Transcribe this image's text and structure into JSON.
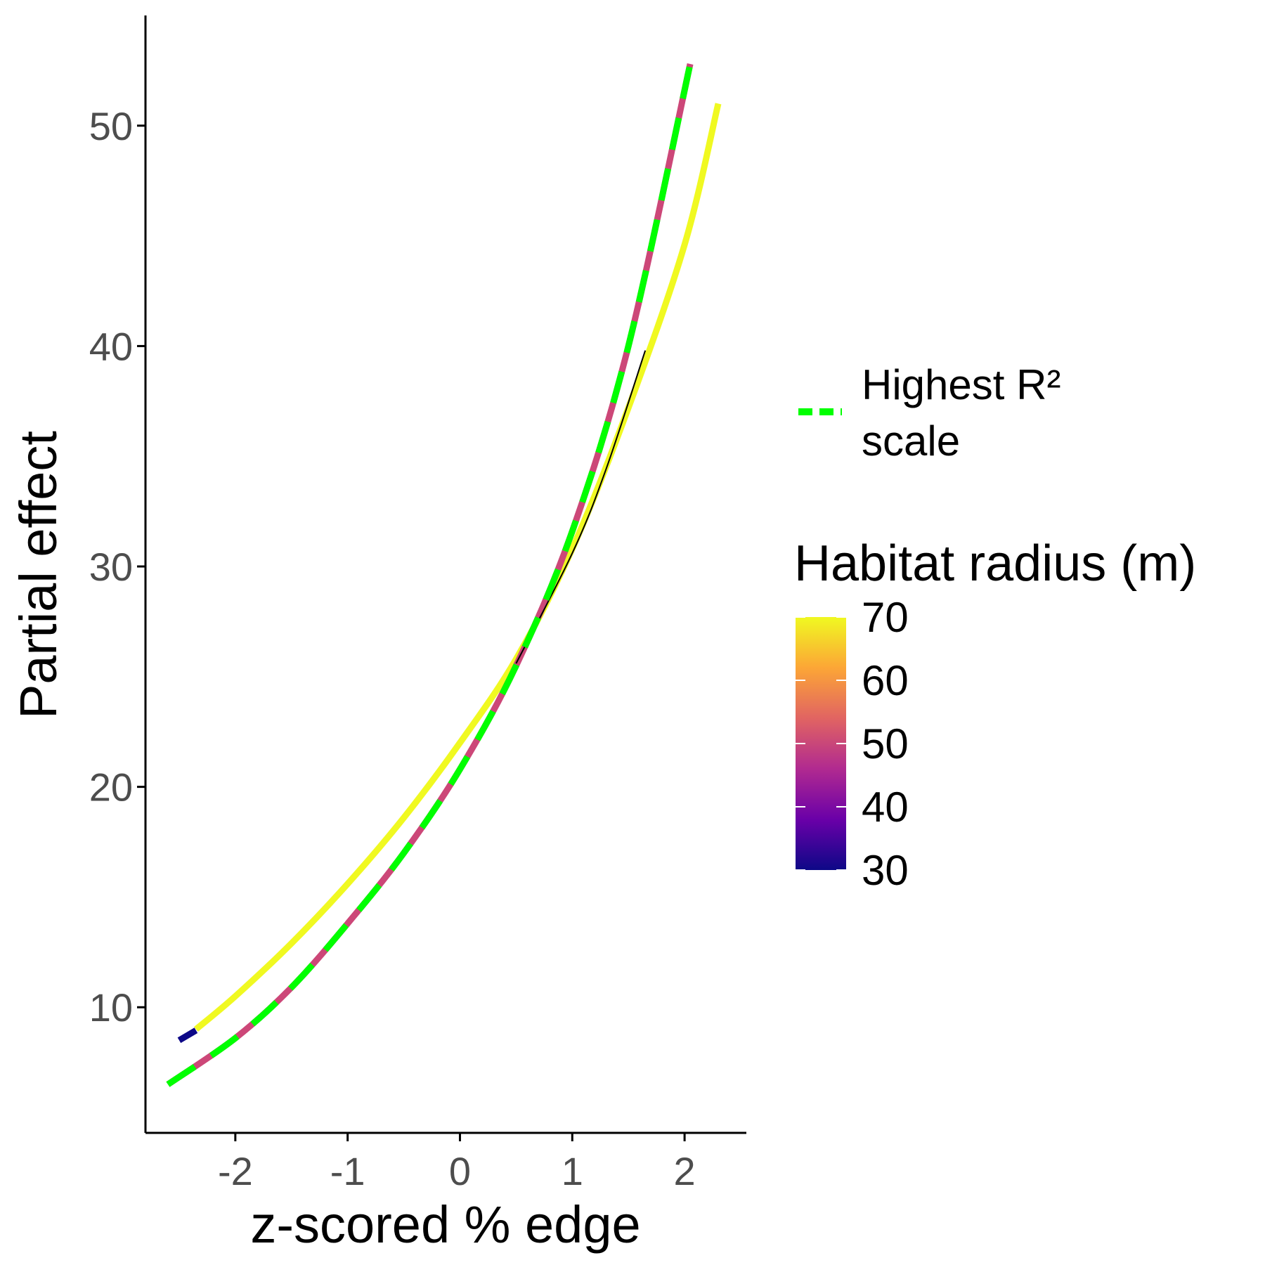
{
  "chart_data": {
    "type": "line",
    "title": "",
    "xlabel": "z-scored % edge",
    "ylabel": "Partial effect",
    "xlim": [
      -2.8,
      2.55
    ],
    "ylim": [
      4.3,
      55.0
    ],
    "x_ticks": [
      -2,
      -1,
      0,
      1,
      2
    ],
    "y_ticks": [
      10,
      20,
      30,
      40,
      50
    ],
    "grid": false,
    "legend_position": "right",
    "legend": {
      "line_label_line1": "Highest R²",
      "line_label_line2": "scale",
      "line_color": "#00ff00",
      "colorbar_title": "Habitat radius (m)",
      "colorbar_ticks": [
        30,
        40,
        50,
        60,
        70
      ],
      "colorbar_range": [
        30,
        70
      ],
      "colormap": [
        "#0d0887",
        "#6a00a8",
        "#b12a90",
        "#e16462",
        "#fca636",
        "#f0f921"
      ]
    },
    "series": [
      {
        "radius_m": 70,
        "color": "#f0f921",
        "x": [
          -2.35,
          -2.0,
          -1.5,
          -1.0,
          -0.5,
          0.0,
          0.5,
          1.0,
          1.5,
          2.0,
          2.3
        ],
        "y": [
          9.0,
          10.5,
          12.9,
          15.6,
          18.6,
          22.0,
          25.8,
          30.8,
          37.2,
          44.6,
          51.0
        ]
      },
      {
        "radius_m": 30,
        "color": "#0d0887",
        "x": [
          -2.5,
          -2.35
        ],
        "y": [
          8.5,
          8.95
        ]
      },
      {
        "radius_m": 50,
        "color": "#cc4778",
        "x": [
          -2.6,
          -2.0,
          -1.5,
          -1.0,
          -0.5,
          0.0,
          0.5,
          1.0,
          1.5,
          2.05
        ],
        "y": [
          6.5,
          8.6,
          10.9,
          13.8,
          17.0,
          20.8,
          25.5,
          31.6,
          40.0,
          52.8
        ]
      },
      {
        "radius_m": null,
        "color": "#000000",
        "x": [
          0.5,
          1.0,
          1.3,
          1.65
        ],
        "y": [
          25.6,
          30.6,
          34.4,
          39.8
        ]
      }
    ],
    "highlight_series": {
      "name": "Highest R² scale",
      "color": "#00ff00",
      "dashed": true,
      "x": [
        -2.6,
        -2.0,
        -1.5,
        -1.0,
        -0.5,
        0.0,
        0.5,
        1.0,
        1.5,
        2.05
      ],
      "y": [
        6.5,
        8.6,
        10.9,
        13.8,
        17.0,
        20.8,
        25.5,
        31.6,
        40.0,
        52.8
      ]
    }
  }
}
